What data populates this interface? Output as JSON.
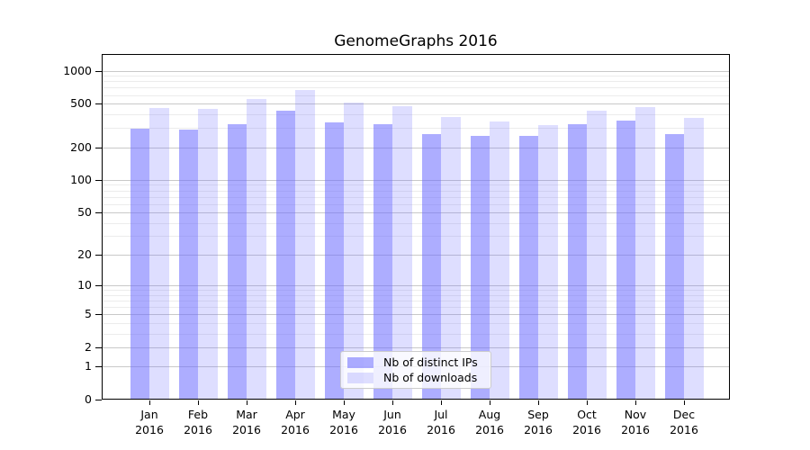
{
  "chart_data": {
    "type": "bar",
    "title": "GenomeGraphs 2016",
    "categories": [
      "Jan",
      "Feb",
      "Mar",
      "Apr",
      "May",
      "Jun",
      "Jul",
      "Aug",
      "Sep",
      "Oct",
      "Nov",
      "Dec"
    ],
    "category_year": "2016",
    "series": [
      {
        "name": "Nb of distinct IPs",
        "color": "rgba(105,105,255,0.55)",
        "values": [
          293,
          291,
          325,
          433,
          337,
          324,
          261,
          254,
          252,
          322,
          347,
          264
        ]
      },
      {
        "name": "Nb of downloads",
        "color": "rgba(105,105,255,0.22)",
        "values": [
          455,
          452,
          550,
          668,
          515,
          470,
          379,
          342,
          316,
          430,
          465,
          370
        ]
      }
    ],
    "y_scale": "log1p",
    "ylim": [
      0,
      1420
    ],
    "y_ticks_major": [
      0,
      1,
      2,
      5,
      10,
      20,
      50,
      100,
      200,
      500,
      1000
    ],
    "y_ticks_minor": [
      3,
      4,
      6,
      7,
      8,
      9,
      30,
      40,
      60,
      70,
      80,
      90,
      300,
      400,
      600,
      700,
      800,
      900
    ],
    "grid": true,
    "legend_position": "bottom-center",
    "xlabel": "",
    "ylabel": ""
  },
  "colors": {
    "bar_base": "#6969ff",
    "grid_major": "#c9c9c9",
    "grid_minor": "#ececec",
    "axis": "#000000",
    "text": "#000000",
    "legend_border": "#cccccc"
  }
}
